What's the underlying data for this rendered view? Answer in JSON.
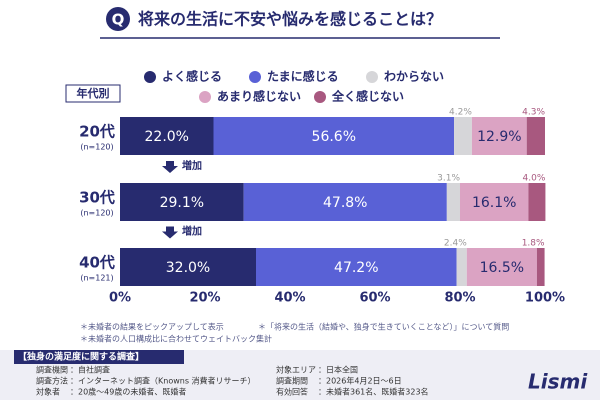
{
  "chart_data": {
    "type": "stacked-barh",
    "title_mark": "Q",
    "title": "将来の生活に不安や悩みを感じることは？",
    "axis_label": "年代別",
    "categories": [
      "20代",
      "30代",
      "40代"
    ],
    "category_notes": [
      "(n=120)",
      "(n=120)",
      "(n=121)"
    ],
    "trend_labels": [
      "増加",
      "増加"
    ],
    "series": [
      {
        "name": "よく感じる",
        "color": "#272b6f",
        "label_color": "#ffffff",
        "label_position": "inside",
        "values": [
          22.0,
          29.1,
          32.0
        ],
        "value_labels": [
          "22.0%",
          "29.1%",
          "32.0%"
        ]
      },
      {
        "name": "たまに感じる",
        "color": "#5961d6",
        "label_color": "#ffffff",
        "label_position": "inside",
        "values": [
          56.6,
          47.8,
          47.2
        ],
        "value_labels": [
          "56.6%",
          "47.8%",
          "47.2%"
        ]
      },
      {
        "name": "わからない",
        "color": "#d6d6d9",
        "label_color": "#9a9a9a",
        "label_position": "outside",
        "values": [
          4.2,
          3.1,
          2.4
        ],
        "value_labels": [
          "4.2%",
          "3.1%",
          "2.4%"
        ]
      },
      {
        "name": "あまり感じない",
        "color": "#dba3c3",
        "label_color": "#272b6f",
        "label_position": "inside",
        "values": [
          12.9,
          16.1,
          16.5
        ],
        "value_labels": [
          "12.9%",
          "16.1%",
          "16.5%"
        ]
      },
      {
        "name": "全く感じない",
        "color": "#a8587f",
        "label_color": "#a8587f",
        "label_position": "outside",
        "values": [
          4.3,
          4.0,
          1.8
        ],
        "value_labels": [
          "4.3%",
          "4.0%",
          "1.8%"
        ]
      }
    ],
    "xlim": [
      0,
      100
    ],
    "xticks": [
      {
        "value": 0,
        "label": "0%"
      },
      {
        "value": 20,
        "label": "20%"
      },
      {
        "value": 40,
        "label": "40%"
      },
      {
        "value": 60,
        "label": "60%"
      },
      {
        "value": 80,
        "label": "80%"
      },
      {
        "value": 100,
        "label": "100%"
      }
    ],
    "grid": false
  },
  "notes": [
    "＊未婚者の結果をピックアップして表示",
    "＊「将来の生活（結婚や、独身で生きていくことなど）」について質問",
    "＊未婚者の人口構成比に合わせてウェイトバック集計"
  ],
  "survey": {
    "title": "【独身の満足度に関する調査】",
    "items": [
      {
        "label": "調査機関",
        "value": "：自社調査"
      },
      {
        "label": "調査方法",
        "value": "：インターネット調査（Knowns 消費者リサーチ）"
      },
      {
        "label": "対象者",
        "value": "：20歳〜49歳の未婚者、既婚者"
      },
      {
        "label": "対象エリア",
        "value": "：日本全国"
      },
      {
        "label": "調査期間",
        "value": "：2026年4月2日〜6日"
      },
      {
        "label": "有効回答",
        "value": "：未婚者361名、既婚者323名"
      }
    ]
  },
  "logo": "Lismi"
}
